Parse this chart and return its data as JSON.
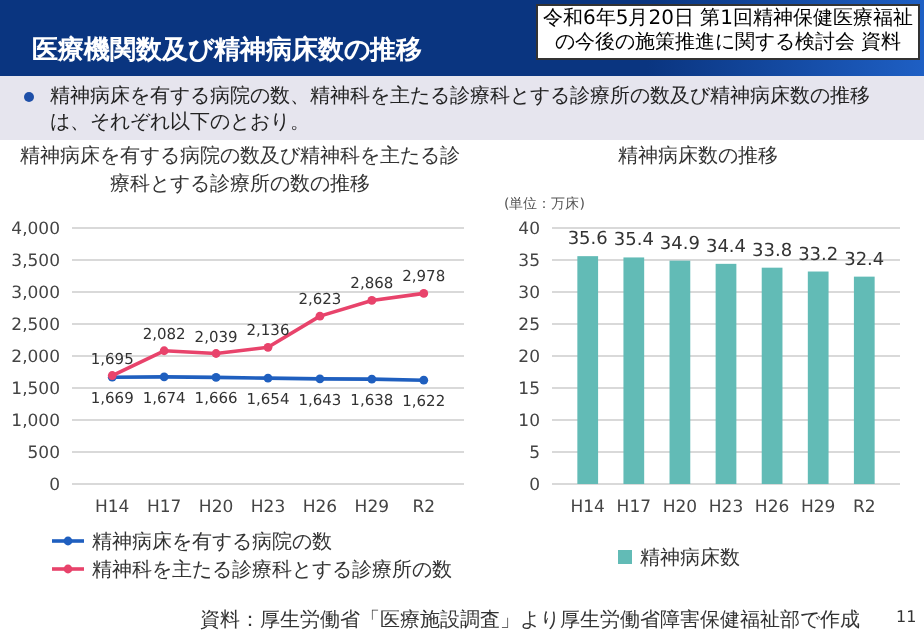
{
  "chart_data": [
    {
      "type": "line",
      "title": "精神病床を有する病院の数及び精神科を主たる診療科とする診療所の数の推移",
      "categories": [
        "H14",
        "H17",
        "H20",
        "H23",
        "H26",
        "H29",
        "R2"
      ],
      "series": [
        {
          "name": "精神病床を有する病院の数",
          "color": "#1f5fbf",
          "values": [
            1669,
            1674,
            1666,
            1654,
            1643,
            1638,
            1622
          ],
          "value_labels": [
            "1,669",
            "1,674",
            "1,666",
            "1,654",
            "1,643",
            "1,638",
            "1,622"
          ]
        },
        {
          "name": "精神科を主たる診療科とする診療所の数",
          "color": "#e8436b",
          "values": [
            1695,
            2082,
            2039,
            2136,
            2623,
            2868,
            2978
          ],
          "value_labels": [
            "1,695",
            "2,082",
            "2,039",
            "2,136",
            "2,623",
            "2,868",
            "2,978"
          ]
        }
      ],
      "ylim": [
        0,
        4000
      ],
      "yticks": [
        {
          "value": 0,
          "label": "0"
        },
        {
          "value": 500,
          "label": "500"
        },
        {
          "value": 1000,
          "label": "1,000"
        },
        {
          "value": 1500,
          "label": "1,500"
        },
        {
          "value": 2000,
          "label": "2,000"
        },
        {
          "value": 2500,
          "label": "2,500"
        },
        {
          "value": 3000,
          "label": "3,000"
        },
        {
          "value": 3500,
          "label": "3,500"
        },
        {
          "value": 4000,
          "label": "4,000"
        }
      ],
      "grid": "y",
      "legend": "bottom",
      "marker": "circle",
      "line_style": "solid",
      "annotations": [
        "医療機関数及び精神病床数の推移",
        "令和6年5月20日 第1回精神保健医療福祉の今後の施策推進に関する検討会 資料",
        "精神病床を有する病院の数、精神科を主たる診療科とする診療所の数及び精神病床数の推移は、それぞれ以下のとおり。"
      ]
    },
    {
      "type": "bar",
      "title": "精神病床数の推移",
      "ylabel": "(単位：万床)",
      "categories": [
        "H14",
        "H17",
        "H20",
        "H23",
        "H26",
        "H29",
        "R2"
      ],
      "series": [
        {
          "name": "精神病床数",
          "color": "#62bbb6",
          "values": [
            35.6,
            35.4,
            34.9,
            34.4,
            33.8,
            33.2,
            32.4
          ]
        }
      ],
      "ylim": [
        0,
        40
      ],
      "yticks": [
        0,
        5,
        10,
        15,
        20,
        25,
        30,
        35,
        40
      ],
      "grid": "y",
      "legend": "bottom",
      "data_labels": true,
      "annotations": [
        "資料：厚生労働省「医療施設調査」より厚生労働省障害保健福祉部で作成",
        "11"
      ]
    }
  ]
}
